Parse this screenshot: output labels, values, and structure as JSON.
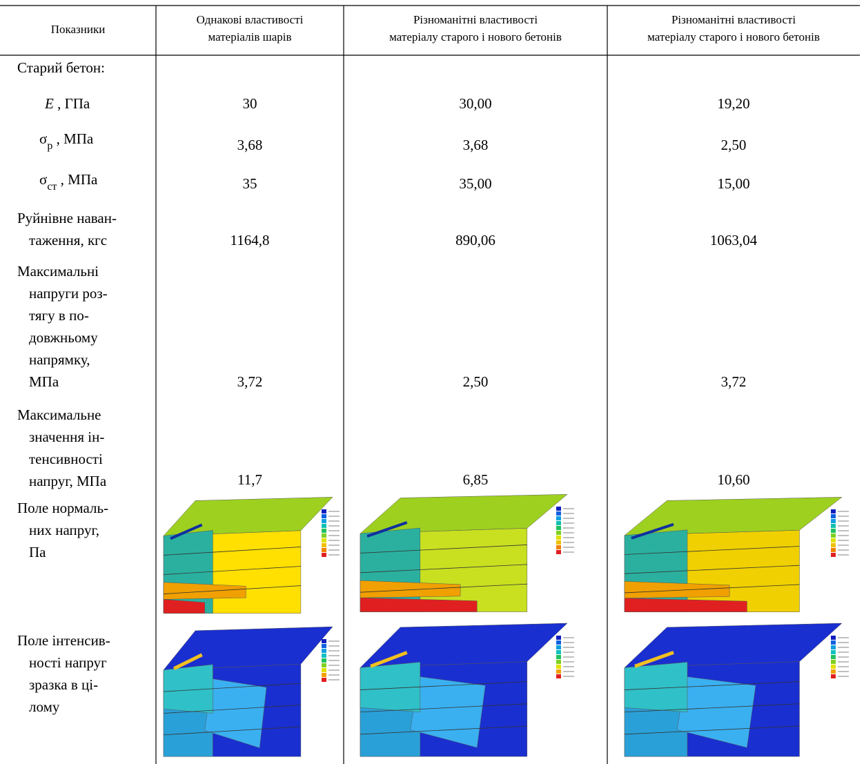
{
  "table": {
    "header": [
      [
        "Показники"
      ],
      [
        "Однакові властивості",
        "матеріалів шарів"
      ],
      [
        "Різноманітні властивості",
        "матеріалу старого і нового бетонів"
      ],
      [
        "Різноманітні властивості",
        "матеріалу старого і нового бетонів"
      ]
    ],
    "rows": [
      {
        "label": [
          "Старий бетон:"
        ]
      },
      {
        "symbol": "E",
        "unit": " , ГПа",
        "values": [
          "30",
          "30,00",
          "19,20"
        ]
      },
      {
        "symbol": "σ",
        "sub": "р",
        "unit": " , МПа",
        "values": [
          "3,68",
          "3,68",
          "2,50"
        ]
      },
      {
        "symbol": "σ",
        "sub": "ст",
        "unit": " , МПа",
        "values": [
          "35",
          "35,00",
          "15,00"
        ]
      },
      {
        "label": [
          "Руйнівне наван-",
          "таження, кгс"
        ],
        "values": [
          "1164,8",
          "890,06",
          "1063,04"
        ]
      },
      {
        "label": [
          "Максимальні",
          "напруги роз-",
          "тягу в по-",
          "довжньому",
          "напрямку,",
          "МПа"
        ],
        "values": [
          "3,72",
          "2,50",
          "3,72"
        ]
      },
      {
        "label": [
          "Максимальне",
          "значення ін-",
          "тенсивності",
          "напруг, МПа"
        ],
        "values": [
          "11,7",
          "6,85",
          "10,60"
        ]
      },
      {
        "label": [
          "Поле нормаль-",
          "них напруг,",
          "Па"
        ]
      },
      {
        "label": [
          "Поле інтенсив-",
          "ності напруг",
          "зразка в ці-",
          "лому"
        ]
      }
    ]
  }
}
